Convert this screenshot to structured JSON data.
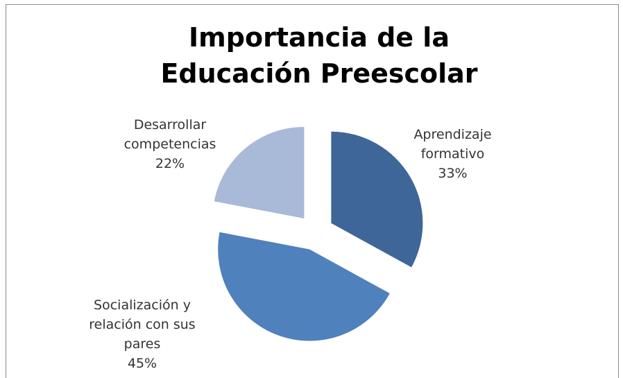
{
  "chart_data": {
    "type": "pie",
    "title": "Importancia de la Educación Preescolar",
    "categories": [
      "Aprendizaje formativo",
      "Socialización y relación con sus pares",
      "Desarrollar competencias"
    ],
    "values": [
      33,
      45,
      22
    ],
    "value_labels": [
      "33%",
      "45%",
      "22%"
    ],
    "colors": [
      "#3f6699",
      "#4f81bd",
      "#a9b9d8"
    ]
  }
}
